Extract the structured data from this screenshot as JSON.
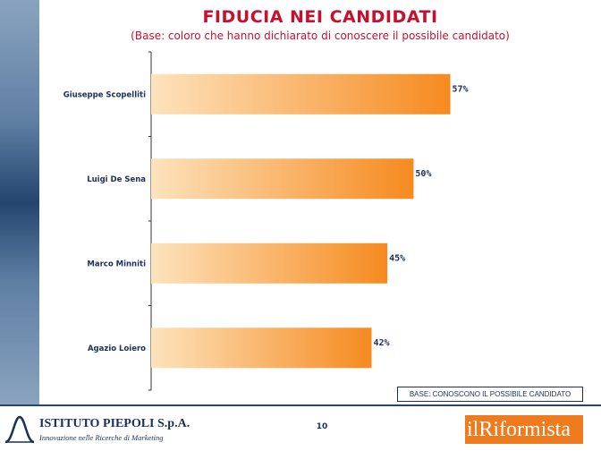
{
  "chart_data": {
    "type": "bar",
    "orientation": "horizontal",
    "title": "FIDUCIA NEI CANDIDATI",
    "subtitle": "(Base: coloro che hanno dichiarato di conoscere il possibile candidato)",
    "categories": [
      "Giuseppe Scopelliti",
      "Luigi De Sena",
      "Marco Minniti",
      "Agazio Loiero"
    ],
    "values": [
      57,
      50,
      45,
      42
    ],
    "value_labels": [
      "57%",
      "50%",
      "45%",
      "42%"
    ],
    "xlim": [
      0,
      76
    ],
    "grid": false,
    "colors": {
      "bar_start": "#fde3bd",
      "bar_end": "#f68a1f",
      "text": "#1a2f5a",
      "title": "#c8102e"
    }
  },
  "footer": {
    "base_note": "BASE: CONOSCONO IL POSSIBILE CANDIDATO",
    "page_number": "10",
    "left_logo_name": "ISTITUTO PIEPOLI S.p.A.",
    "left_logo_tagline": "Innovazione nelle Ricerche di Marketing",
    "right_logo_text": "ilRiformista"
  }
}
